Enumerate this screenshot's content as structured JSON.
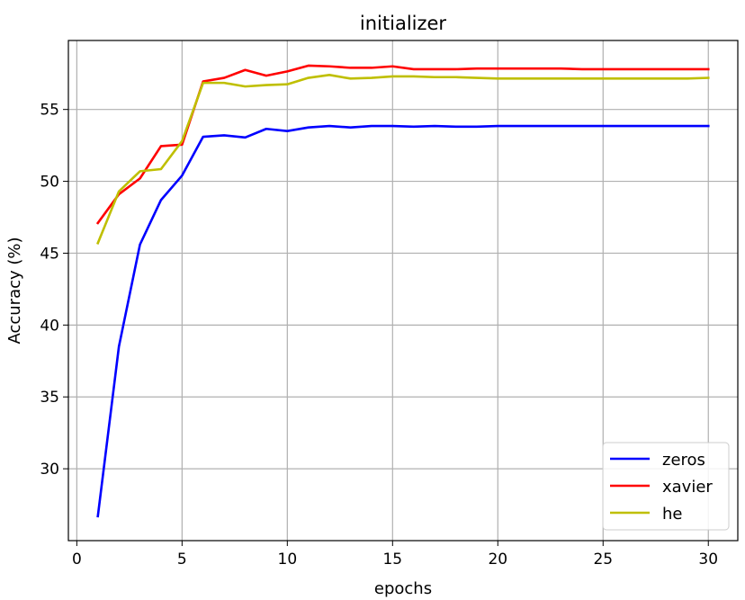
{
  "chart_data": {
    "type": "line",
    "title": "initializer",
    "xlabel": "epochs",
    "ylabel": "Accuracy (%)",
    "xlim": [
      -0.4,
      31.4
    ],
    "ylim": [
      25,
      59.8
    ],
    "xticks": [
      0,
      5,
      10,
      15,
      20,
      25,
      30
    ],
    "yticks": [
      30,
      35,
      40,
      45,
      50,
      55
    ],
    "grid": true,
    "legend_position": "lower-right",
    "x": [
      1,
      2,
      3,
      4,
      5,
      6,
      7,
      8,
      9,
      10,
      11,
      12,
      13,
      14,
      15,
      16,
      17,
      18,
      19,
      20,
      21,
      22,
      23,
      24,
      25,
      26,
      27,
      28,
      29,
      30
    ],
    "series": [
      {
        "name": "zeros",
        "color": "#0000ff",
        "values": [
          26.7,
          38.5,
          45.6,
          48.7,
          50.4,
          53.1,
          53.2,
          53.05,
          53.65,
          53.5,
          53.75,
          53.85,
          53.75,
          53.85,
          53.85,
          53.8,
          53.85,
          53.8,
          53.8,
          53.85,
          53.85,
          53.85,
          53.85,
          53.85,
          53.85,
          53.85,
          53.85,
          53.85,
          53.85,
          53.85
        ]
      },
      {
        "name": "xavier",
        "color": "#ff0000",
        "values": [
          47.1,
          49.1,
          50.2,
          52.45,
          52.55,
          56.95,
          57.2,
          57.75,
          57.35,
          57.65,
          58.05,
          58.0,
          57.9,
          57.9,
          58.0,
          57.8,
          57.8,
          57.8,
          57.85,
          57.85,
          57.85,
          57.85,
          57.85,
          57.8,
          57.8,
          57.8,
          57.8,
          57.8,
          57.8,
          57.8
        ]
      },
      {
        "name": "he",
        "color": "#bfbf00",
        "values": [
          45.7,
          49.3,
          50.7,
          50.85,
          52.8,
          56.85,
          56.85,
          56.6,
          56.7,
          56.75,
          57.2,
          57.4,
          57.15,
          57.2,
          57.3,
          57.3,
          57.25,
          57.25,
          57.2,
          57.15,
          57.15,
          57.15,
          57.15,
          57.15,
          57.15,
          57.15,
          57.15,
          57.15,
          57.15,
          57.2
        ]
      }
    ]
  }
}
